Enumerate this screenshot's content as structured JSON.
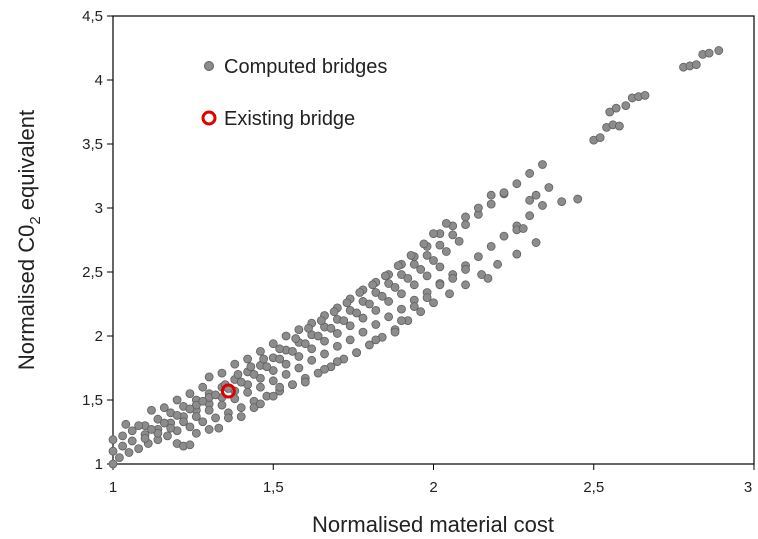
{
  "chart_data": {
    "type": "scatter",
    "title": "",
    "xlabel": "Normalised material cost",
    "ylabel_main": "Normalised C0",
    "ylabel_sub": "2",
    "ylabel_tail": " equivalent",
    "xlim": [
      1,
      3
    ],
    "ylim": [
      1,
      4.5
    ],
    "xticks": [
      "1",
      "1,5",
      "2",
      "2,5",
      "3"
    ],
    "yticks": [
      "1",
      "1,5",
      "2",
      "2,5",
      "3",
      "3,5",
      "4",
      "4,5"
    ],
    "grid": false,
    "legend_position": "top-left",
    "colors": {
      "computed": "#8c8c8c",
      "computed_edge": "#5f5f5f",
      "existing": "#e00000"
    },
    "series": [
      {
        "name": "Computed bridges",
        "marker": "filled-circle",
        "points": [
          [
            1.0,
            1.0
          ],
          [
            1.02,
            1.05
          ],
          [
            1.05,
            1.09
          ],
          [
            1.08,
            1.12
          ],
          [
            1.11,
            1.16
          ],
          [
            1.14,
            1.19
          ],
          [
            1.17,
            1.22
          ],
          [
            1.2,
            1.26
          ],
          [
            1.24,
            1.29
          ],
          [
            1.28,
            1.33
          ],
          [
            1.32,
            1.36
          ],
          [
            1.36,
            1.4
          ],
          [
            1.4,
            1.44
          ],
          [
            1.44,
            1.49
          ],
          [
            1.48,
            1.53
          ],
          [
            1.52,
            1.57
          ],
          [
            1.56,
            1.62
          ],
          [
            1.6,
            1.67
          ],
          [
            1.64,
            1.71
          ],
          [
            1.68,
            1.76
          ],
          [
            1.72,
            1.82
          ],
          [
            1.76,
            1.87
          ],
          [
            1.8,
            1.93
          ],
          [
            1.84,
            1.99
          ],
          [
            1.88,
            2.05
          ],
          [
            1.92,
            2.12
          ],
          [
            1.96,
            2.19
          ],
          [
            2.0,
            2.26
          ],
          [
            2.05,
            2.33
          ],
          [
            2.1,
            2.4
          ],
          [
            2.15,
            2.48
          ],
          [
            2.2,
            2.56
          ],
          [
            2.26,
            2.64
          ],
          [
            2.32,
            2.73
          ],
          [
            1.0,
            1.1
          ],
          [
            1.03,
            1.14
          ],
          [
            1.06,
            1.18
          ],
          [
            1.1,
            1.23
          ],
          [
            1.14,
            1.27
          ],
          [
            1.18,
            1.32
          ],
          [
            1.22,
            1.37
          ],
          [
            1.26,
            1.42
          ],
          [
            1.3,
            1.47
          ],
          [
            1.34,
            1.52
          ],
          [
            1.38,
            1.57
          ],
          [
            1.42,
            1.62
          ],
          [
            1.46,
            1.67
          ],
          [
            1.5,
            1.73
          ],
          [
            1.54,
            1.78
          ],
          [
            1.58,
            1.84
          ],
          [
            1.62,
            1.9
          ],
          [
            1.66,
            1.96
          ],
          [
            1.7,
            2.02
          ],
          [
            1.74,
            2.08
          ],
          [
            1.78,
            2.14
          ],
          [
            1.82,
            2.2
          ],
          [
            1.86,
            2.27
          ],
          [
            1.9,
            2.33
          ],
          [
            1.94,
            2.4
          ],
          [
            1.98,
            2.47
          ],
          [
            2.02,
            2.54
          ],
          [
            1.0,
            1.19
          ],
          [
            1.03,
            1.22
          ],
          [
            1.06,
            1.26
          ],
          [
            1.1,
            1.3
          ],
          [
            1.14,
            1.35
          ],
          [
            1.18,
            1.4
          ],
          [
            1.22,
            1.45
          ],
          [
            1.26,
            1.5
          ],
          [
            1.3,
            1.55
          ],
          [
            1.34,
            1.6
          ],
          [
            1.38,
            1.66
          ],
          [
            1.42,
            1.72
          ],
          [
            1.46,
            1.77
          ],
          [
            1.5,
            1.83
          ],
          [
            1.54,
            1.89
          ],
          [
            1.58,
            1.95
          ],
          [
            1.62,
            2.01
          ],
          [
            1.66,
            2.07
          ],
          [
            1.7,
            2.13
          ],
          [
            1.74,
            2.2
          ],
          [
            1.78,
            2.27
          ],
          [
            1.82,
            2.34
          ],
          [
            1.86,
            2.41
          ],
          [
            1.9,
            2.48
          ],
          [
            1.94,
            2.56
          ],
          [
            1.98,
            2.63
          ],
          [
            2.02,
            2.71
          ],
          [
            2.06,
            2.79
          ],
          [
            2.1,
            2.87
          ],
          [
            2.14,
            2.95
          ],
          [
            2.18,
            3.03
          ],
          [
            2.22,
            3.11
          ],
          [
            2.26,
            3.19
          ],
          [
            2.3,
            3.27
          ],
          [
            2.34,
            3.34
          ],
          [
            1.04,
            1.31
          ],
          [
            1.08,
            1.3
          ],
          [
            1.12,
            1.42
          ],
          [
            1.16,
            1.44
          ],
          [
            1.2,
            1.5
          ],
          [
            1.24,
            1.55
          ],
          [
            1.28,
            1.6
          ],
          [
            1.3,
            1.68
          ],
          [
            1.34,
            1.71
          ],
          [
            1.38,
            1.78
          ],
          [
            1.42,
            1.82
          ],
          [
            1.46,
            1.88
          ],
          [
            1.5,
            1.94
          ],
          [
            1.54,
            2.0
          ],
          [
            1.58,
            2.05
          ],
          [
            1.62,
            2.1
          ],
          [
            1.66,
            2.16
          ],
          [
            1.7,
            2.22
          ],
          [
            1.74,
            2.29
          ],
          [
            1.78,
            2.36
          ],
          [
            1.82,
            2.42
          ],
          [
            1.86,
            2.48
          ],
          [
            1.9,
            2.56
          ],
          [
            1.94,
            2.62
          ],
          [
            1.98,
            2.7
          ],
          [
            2.02,
            2.8
          ],
          [
            2.06,
            2.86
          ],
          [
            2.1,
            2.93
          ],
          [
            2.14,
            3.0
          ],
          [
            2.18,
            3.1
          ],
          [
            2.22,
            3.12
          ],
          [
            1.1,
            1.2
          ],
          [
            1.14,
            1.24
          ],
          [
            1.18,
            1.28
          ],
          [
            1.22,
            1.33
          ],
          [
            1.26,
            1.37
          ],
          [
            1.3,
            1.42
          ],
          [
            1.34,
            1.46
          ],
          [
            1.38,
            1.51
          ],
          [
            1.42,
            1.56
          ],
          [
            1.46,
            1.6
          ],
          [
            1.5,
            1.65
          ],
          [
            1.54,
            1.7
          ],
          [
            1.58,
            1.75
          ],
          [
            1.62,
            1.81
          ],
          [
            1.66,
            1.86
          ],
          [
            1.7,
            1.92
          ],
          [
            1.74,
            1.97
          ],
          [
            1.78,
            2.03
          ],
          [
            1.82,
            2.09
          ],
          [
            1.86,
            2.15
          ],
          [
            1.9,
            2.21
          ],
          [
            1.94,
            2.28
          ],
          [
            1.98,
            2.34
          ],
          [
            2.02,
            2.41
          ],
          [
            2.06,
            2.48
          ],
          [
            2.1,
            2.55
          ],
          [
            2.14,
            2.62
          ],
          [
            2.18,
            2.7
          ],
          [
            2.22,
            2.78
          ],
          [
            2.26,
            2.86
          ],
          [
            2.3,
            2.94
          ],
          [
            2.34,
            3.02
          ],
          [
            1.2,
            1.16
          ],
          [
            1.22,
            1.14
          ],
          [
            1.24,
            1.15
          ],
          [
            1.26,
            1.24
          ],
          [
            1.3,
            1.27
          ],
          [
            1.33,
            1.28
          ],
          [
            1.36,
            1.36
          ],
          [
            1.4,
            1.37
          ],
          [
            1.44,
            1.44
          ],
          [
            1.46,
            1.47
          ],
          [
            1.5,
            1.53
          ],
          [
            1.52,
            1.6
          ],
          [
            1.56,
            1.62
          ],
          [
            1.6,
            1.64
          ],
          [
            1.66,
            1.74
          ],
          [
            1.7,
            1.8
          ],
          [
            1.76,
            1.87
          ],
          [
            1.82,
            1.97
          ],
          [
            1.88,
            2.03
          ],
          [
            1.9,
            2.12
          ],
          [
            1.94,
            2.23
          ],
          [
            1.98,
            2.3
          ],
          [
            2.02,
            2.4
          ],
          [
            2.06,
            2.45
          ],
          [
            2.1,
            2.52
          ],
          [
            2.17,
            2.45
          ],
          [
            2.26,
            2.83
          ],
          [
            2.28,
            2.84
          ],
          [
            2.3,
            3.06
          ],
          [
            2.32,
            3.1
          ],
          [
            2.36,
            3.16
          ],
          [
            2.4,
            3.05
          ],
          [
            2.45,
            3.07
          ],
          [
            2.5,
            3.53
          ],
          [
            2.52,
            3.55
          ],
          [
            2.54,
            3.63
          ],
          [
            2.56,
            3.65
          ],
          [
            2.58,
            3.64
          ],
          [
            2.55,
            3.75
          ],
          [
            2.57,
            3.78
          ],
          [
            2.6,
            3.8
          ],
          [
            2.62,
            3.86
          ],
          [
            2.64,
            3.87
          ],
          [
            2.66,
            3.88
          ],
          [
            2.78,
            4.1
          ],
          [
            2.8,
            4.11
          ],
          [
            2.82,
            4.12
          ],
          [
            2.84,
            4.2
          ],
          [
            2.86,
            4.21
          ],
          [
            2.89,
            4.23
          ],
          [
            1.26,
            1.46
          ],
          [
            1.3,
            1.52
          ],
          [
            1.35,
            1.62
          ],
          [
            1.39,
            1.7
          ],
          [
            1.43,
            1.76
          ],
          [
            1.47,
            1.82
          ],
          [
            1.52,
            1.9
          ],
          [
            1.57,
            1.98
          ],
          [
            1.61,
            2.06
          ],
          [
            1.65,
            2.12
          ],
          [
            1.69,
            2.19
          ],
          [
            1.73,
            2.26
          ],
          [
            1.77,
            2.34
          ],
          [
            1.81,
            2.4
          ],
          [
            1.85,
            2.47
          ],
          [
            1.89,
            2.55
          ],
          [
            1.93,
            2.63
          ],
          [
            1.97,
            2.72
          ],
          [
            2.0,
            2.8
          ],
          [
            2.04,
            2.88
          ],
          [
            1.12,
            1.27
          ],
          [
            1.16,
            1.32
          ],
          [
            1.2,
            1.38
          ],
          [
            1.24,
            1.43
          ],
          [
            1.28,
            1.49
          ],
          [
            1.32,
            1.54
          ],
          [
            1.36,
            1.59
          ],
          [
            1.4,
            1.64
          ],
          [
            1.44,
            1.7
          ],
          [
            1.48,
            1.76
          ],
          [
            1.52,
            1.82
          ],
          [
            1.56,
            1.88
          ],
          [
            1.6,
            1.94
          ],
          [
            1.64,
            2.0
          ],
          [
            1.68,
            2.06
          ],
          [
            1.72,
            2.12
          ],
          [
            1.76,
            2.18
          ],
          [
            1.8,
            2.25
          ],
          [
            1.84,
            2.31
          ],
          [
            1.88,
            2.38
          ],
          [
            1.92,
            2.45
          ],
          [
            1.96,
            2.52
          ],
          [
            2.0,
            2.59
          ],
          [
            2.04,
            2.66
          ],
          [
            2.08,
            2.74
          ]
        ]
      },
      {
        "name": "Existing bridge",
        "marker": "open-circle",
        "points": [
          [
            1.36,
            1.57
          ]
        ]
      }
    ]
  }
}
